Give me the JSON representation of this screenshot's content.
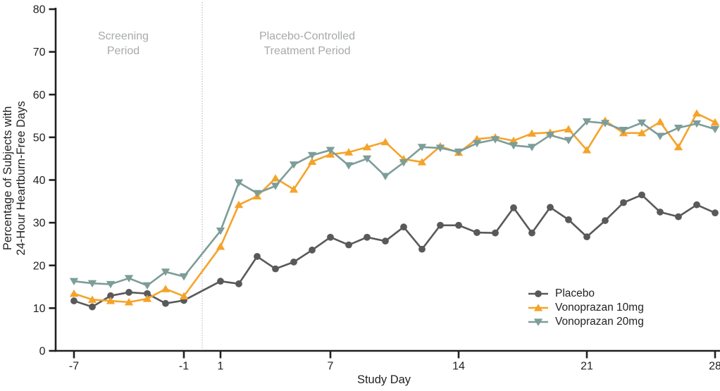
{
  "chart_data": {
    "type": "line",
    "xlabel": "Study Day",
    "ylabel_lines": [
      "Percentage of Subjects with",
      "24-Hour Heartburn-Free Days"
    ],
    "x_ticks": [
      -7,
      -1,
      1,
      7,
      14,
      21,
      28
    ],
    "y_ticks": [
      0,
      10,
      20,
      30,
      40,
      50,
      60,
      70,
      80
    ],
    "ylim": [
      0,
      80
    ],
    "xlim": [
      -8,
      28.3
    ],
    "grid": false,
    "legend_position": "bottom-right",
    "separator": {
      "x_day": 0,
      "style": "dotted",
      "color": "#B4B6B8"
    },
    "annotations": [
      {
        "lines": [
          "Screening",
          "Period"
        ],
        "x_day": -4.3,
        "color": "#A7A9AC"
      },
      {
        "lines": [
          "Placebo-Controlled",
          "Treatment Period"
        ],
        "x_day": 5.7,
        "color": "#A7A9AC"
      }
    ],
    "x": [
      -7,
      -6,
      -5,
      -4,
      -3,
      -2,
      -1,
      1,
      2,
      3,
      4,
      5,
      6,
      7,
      8,
      9,
      10,
      11,
      12,
      13,
      14,
      15,
      16,
      17,
      18,
      19,
      20,
      21,
      22,
      23,
      24,
      25,
      26,
      27,
      28
    ],
    "series": [
      {
        "name": "Placebo",
        "color": "#58595B",
        "marker": "circle",
        "values": [
          11.7,
          10.3,
          12.9,
          13.7,
          13.4,
          11.1,
          11.8,
          16.3,
          15.7,
          22.1,
          19.2,
          20.8,
          23.6,
          26.6,
          24.8,
          26.6,
          25.7,
          29.0,
          23.8,
          29.4,
          29.4,
          27.7,
          27.6,
          33.5,
          27.6,
          33.6,
          30.7,
          26.7,
          30.5,
          34.7,
          36.5,
          32.5,
          31.4,
          34.2,
          32.3
        ]
      },
      {
        "name": "Vonoprazan 10mg",
        "color": "#F5A32B",
        "marker": "triangle-up",
        "values": [
          13.4,
          12.0,
          11.7,
          11.4,
          12.2,
          14.5,
          12.8,
          24.4,
          34.2,
          36.2,
          40.4,
          37.8,
          44.3,
          46.0,
          46.5,
          47.7,
          48.9,
          44.9,
          44.2,
          47.9,
          46.4,
          49.6,
          50.0,
          49.2,
          50.9,
          51.1,
          51.9,
          47.0,
          53.9,
          51.0,
          51.0,
          53.6,
          47.7,
          55.6,
          53.5
        ]
      },
      {
        "name": "Vonoprazan 20mg",
        "color": "#7C9D98",
        "marker": "triangle-down",
        "values": [
          16.3,
          15.8,
          15.6,
          17.0,
          15.3,
          18.5,
          17.4,
          28.1,
          39.4,
          36.9,
          38.6,
          43.6,
          45.8,
          47.0,
          43.4,
          45.0,
          40.9,
          44.1,
          47.7,
          47.5,
          46.6,
          48.6,
          49.5,
          48.1,
          47.7,
          50.5,
          49.3,
          53.7,
          53.3,
          51.7,
          53.4,
          50.3,
          52.2,
          53.2,
          51.9
        ]
      }
    ]
  }
}
